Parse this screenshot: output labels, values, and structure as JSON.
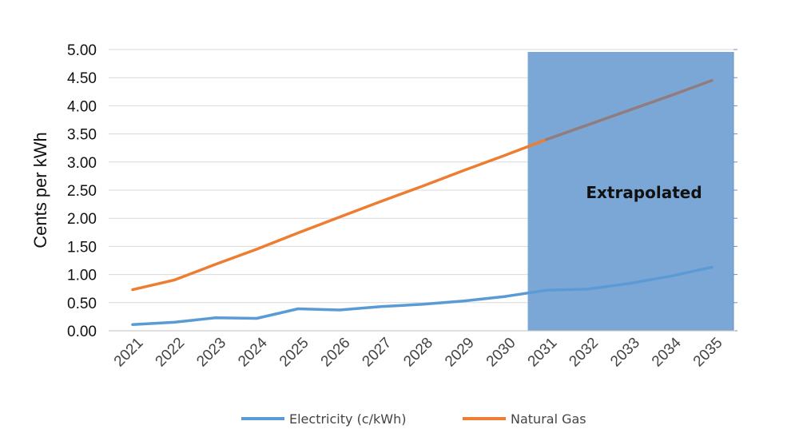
{
  "chart_data": {
    "type": "line",
    "title": "",
    "xlabel": "",
    "ylabel": "Cents per kWh",
    "categories": [
      "2021",
      "2022",
      "2023",
      "2024",
      "2025",
      "2026",
      "2027",
      "2028",
      "2029",
      "2030",
      "2031",
      "2032",
      "2033",
      "2034",
      "2035"
    ],
    "ylim": [
      0,
      5
    ],
    "yticks": [
      "0.00",
      "0.50",
      "1.00",
      "1.50",
      "2.00",
      "2.50",
      "3.00",
      "3.50",
      "4.00",
      "4.50",
      "5.00"
    ],
    "grid": true,
    "legend_position": "bottom",
    "series": [
      {
        "name": "Electricity (c/kWh)",
        "color": "#5b9bd5",
        "values": [
          0.11,
          0.15,
          0.23,
          0.22,
          0.39,
          0.37,
          0.43,
          0.47,
          0.53,
          0.61,
          0.72,
          0.74,
          0.84,
          0.97,
          1.13
        ]
      },
      {
        "name": "Natural Gas",
        "color": "#ed7d31",
        "values": [
          0.73,
          0.9,
          1.18,
          1.45,
          1.74,
          2.02,
          2.3,
          2.57,
          2.85,
          3.12,
          3.4,
          3.66,
          3.92,
          4.18,
          4.45
        ]
      }
    ],
    "shaded_region": {
      "from_category": "2031",
      "to_category": "2035",
      "label": "Extrapolated",
      "fill_color": "#7ba7d6",
      "overlap_line_color": "#8c7e84"
    }
  }
}
